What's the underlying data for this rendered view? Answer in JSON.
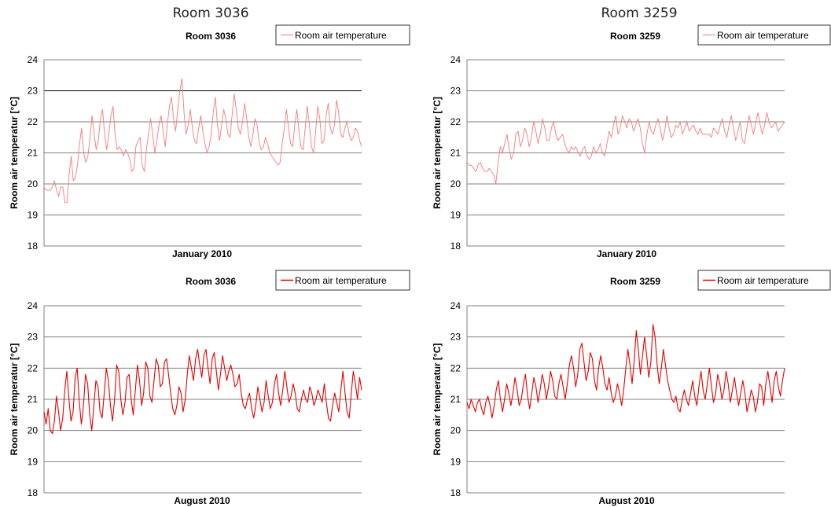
{
  "column_titles": [
    "Room 3036",
    "Room 3259"
  ],
  "colors": {
    "series_light": "#f47b7b",
    "series_dark": "#e60000",
    "grid": "#808080",
    "highlight_line": "#000000",
    "axis": "#808080"
  },
  "chart_data": [
    {
      "type": "line",
      "title": "Room 3036",
      "xlabel": "January 2010",
      "ylabel": "Room air temperatur [°C]",
      "ylim": [
        18,
        24
      ],
      "yticks": [
        "18",
        "19",
        "20",
        "21",
        "22",
        "23",
        "24"
      ],
      "grid": true,
      "highlight_y": 23,
      "legend_position": "top-right",
      "series": [
        {
          "name": "Room air temperature",
          "style": "light",
          "y": [
            19.9,
            19.8,
            19.8,
            19.8,
            19.9,
            20.1,
            19.8,
            19.6,
            19.9,
            19.9,
            19.4,
            19.4,
            20.3,
            20.9,
            20.1,
            20.2,
            20.6,
            21.3,
            21.8,
            21.0,
            20.7,
            20.9,
            21.5,
            22.2,
            21.6,
            21.1,
            21.4,
            22.1,
            22.4,
            21.6,
            21.1,
            21.6,
            22.2,
            22.5,
            21.6,
            21.1,
            21.2,
            21.1,
            20.9,
            21.1,
            21.0,
            20.8,
            20.4,
            20.5,
            21.2,
            21.4,
            21.5,
            20.6,
            20.4,
            21.1,
            21.6,
            22.1,
            21.6,
            21.0,
            21.4,
            21.9,
            22.2,
            21.7,
            21.2,
            21.9,
            22.5,
            22.8,
            22.1,
            21.7,
            22.4,
            23.0,
            23.4,
            22.3,
            21.6,
            21.9,
            22.4,
            21.8,
            21.4,
            21.3,
            21.8,
            22.2,
            21.7,
            21.3,
            21.0,
            21.2,
            21.6,
            22.3,
            22.8,
            21.9,
            21.4,
            21.9,
            22.4,
            22.1,
            21.6,
            21.5,
            22.2,
            22.9,
            22.4,
            21.8,
            21.6,
            22.0,
            22.6,
            22.1,
            21.5,
            21.2,
            21.6,
            22.1,
            21.9,
            21.3,
            21.1,
            21.2,
            21.5,
            21.3,
            21.0,
            20.9,
            20.8,
            20.7,
            20.6,
            20.7,
            21.3,
            21.8,
            22.4,
            21.8,
            21.3,
            21.2,
            21.9,
            22.4,
            21.7,
            21.2,
            21.1,
            21.8,
            22.5,
            21.9,
            21.2,
            21.0,
            21.7,
            22.5,
            22.1,
            21.3,
            21.4,
            22.2,
            22.6,
            21.8,
            21.6,
            21.9,
            22.7,
            22.3,
            21.6,
            21.5,
            21.8,
            22.0,
            21.6,
            21.4,
            21.5,
            21.8,
            21.7,
            21.4,
            21.2
          ]
        }
      ]
    },
    {
      "type": "line",
      "title": "Room 3259",
      "xlabel": "January 2010",
      "ylabel": "Room air temperatur [°C]",
      "ylim": [
        18,
        24
      ],
      "yticks": [
        "18",
        "19",
        "20",
        "21",
        "22",
        "23",
        "24"
      ],
      "grid": true,
      "legend_position": "top-right",
      "series": [
        {
          "name": "Room air temperature",
          "style": "light",
          "y": [
            20.7,
            20.6,
            20.6,
            20.5,
            20.4,
            20.6,
            20.7,
            20.5,
            20.4,
            20.4,
            20.5,
            20.4,
            20.3,
            20.0,
            20.7,
            21.2,
            21.0,
            21.3,
            21.6,
            21.1,
            20.8,
            21.0,
            21.6,
            21.7,
            21.2,
            21.4,
            21.8,
            21.6,
            21.2,
            21.5,
            22.0,
            21.7,
            21.3,
            21.6,
            22.1,
            21.8,
            21.4,
            21.4,
            21.8,
            22.0,
            21.6,
            21.4,
            21.5,
            21.6,
            21.3,
            21.1,
            21.0,
            21.2,
            21.1,
            21.2,
            21.0,
            20.9,
            21.1,
            21.2,
            20.9,
            20.8,
            20.9,
            21.2,
            21.0,
            21.1,
            21.3,
            21.0,
            20.9,
            21.3,
            21.7,
            21.5,
            21.9,
            22.2,
            21.6,
            21.8,
            22.2,
            22.0,
            21.8,
            22.1,
            22.0,
            21.7,
            21.9,
            22.1,
            21.8,
            21.3,
            21.0,
            21.6,
            22.0,
            21.7,
            21.6,
            21.9,
            22.1,
            21.8,
            21.4,
            21.7,
            22.2,
            21.8,
            21.5,
            21.6,
            21.9,
            21.8,
            22.0,
            21.6,
            21.8,
            22.0,
            21.7,
            21.8,
            21.9,
            21.7,
            21.6,
            21.8,
            21.6,
            21.6,
            21.6,
            21.6,
            21.5,
            21.8,
            21.7,
            21.6,
            21.9,
            22.1,
            21.7,
            21.5,
            21.9,
            22.2,
            21.8,
            21.4,
            21.7,
            22.0,
            21.4,
            21.3,
            21.8,
            22.2,
            21.9,
            21.6,
            22.0,
            22.3,
            21.9,
            21.6,
            21.9,
            22.3,
            22.0,
            21.8,
            21.9,
            22.0,
            21.7,
            21.8,
            21.9,
            22.0
          ]
        }
      ]
    },
    {
      "type": "line",
      "title": "Room 3036",
      "xlabel": "August 2010",
      "ylabel": "Room air temperatur [°C]",
      "ylim": [
        18,
        24
      ],
      "yticks": [
        "18",
        "19",
        "20",
        "21",
        "22",
        "23",
        "24"
      ],
      "grid": true,
      "legend_position": "top-right",
      "series": [
        {
          "name": "Room air temperature",
          "style": "dark",
          "y": [
            20.6,
            20.2,
            20.7,
            20.0,
            19.9,
            20.3,
            21.1,
            20.6,
            20.0,
            20.4,
            21.3,
            21.9,
            21.0,
            20.3,
            20.6,
            21.7,
            22.0,
            20.9,
            20.2,
            20.8,
            21.8,
            21.5,
            20.5,
            20.0,
            20.8,
            21.6,
            21.4,
            20.6,
            20.4,
            21.2,
            22.0,
            21.6,
            20.8,
            20.3,
            21.0,
            22.1,
            21.9,
            21.0,
            20.5,
            20.9,
            21.7,
            21.8,
            21.0,
            20.5,
            21.3,
            22.1,
            21.6,
            20.8,
            21.2,
            22.2,
            22.0,
            21.1,
            20.9,
            21.6,
            22.3,
            22.1,
            21.4,
            21.5,
            22.2,
            22.3,
            21.8,
            21.2,
            20.7,
            20.5,
            20.8,
            21.4,
            21.2,
            20.6,
            21.0,
            21.8,
            22.4,
            22.0,
            21.6,
            22.3,
            22.6,
            22.1,
            21.7,
            22.4,
            22.6,
            22.0,
            21.5,
            22.3,
            22.5,
            21.9,
            21.3,
            21.8,
            22.4,
            22.0,
            21.6,
            21.9,
            22.1,
            21.8,
            21.4,
            21.5,
            21.8,
            21.2,
            20.8,
            20.7,
            21.0,
            21.2,
            20.7,
            20.4,
            20.8,
            21.4,
            21.0,
            20.6,
            20.9,
            21.6,
            21.1,
            20.7,
            20.9,
            21.5,
            21.8,
            21.2,
            20.8,
            21.3,
            21.9,
            21.4,
            20.9,
            21.1,
            21.5,
            21.2,
            20.7,
            20.6,
            21.0,
            21.3,
            21.0,
            20.9,
            21.4,
            21.2,
            20.8,
            21.0,
            21.3,
            21.1,
            20.9,
            21.5,
            20.9,
            20.4,
            20.3,
            20.8,
            21.2,
            20.9,
            20.6,
            21.3,
            21.9,
            21.2,
            20.6,
            20.4,
            21.2,
            21.9,
            21.5,
            21.0,
            21.7,
            21.3
          ]
        }
      ]
    },
    {
      "type": "line",
      "title": "Room 3259",
      "xlabel": "August 2010",
      "ylabel": "Room air temperatur [°C]",
      "ylim": [
        18,
        24
      ],
      "yticks": [
        "18",
        "19",
        "20",
        "21",
        "22",
        "23",
        "24"
      ],
      "grid": true,
      "legend_position": "top-right",
      "series": [
        {
          "name": "Room air temperature",
          "style": "dark",
          "y": [
            20.9,
            20.7,
            21.0,
            20.8,
            20.6,
            20.9,
            21.0,
            20.7,
            20.5,
            20.9,
            21.1,
            20.8,
            20.4,
            20.8,
            21.3,
            21.6,
            21.0,
            20.6,
            21.0,
            21.5,
            21.2,
            20.8,
            21.2,
            21.7,
            21.3,
            20.8,
            21.0,
            21.5,
            21.8,
            21.1,
            20.7,
            21.2,
            21.7,
            21.4,
            20.9,
            21.3,
            21.8,
            21.5,
            21.0,
            21.4,
            21.9,
            21.6,
            21.1,
            21.0,
            21.5,
            21.8,
            21.4,
            21.0,
            21.5,
            22.1,
            22.4,
            22.0,
            21.4,
            21.8,
            22.6,
            22.8,
            22.2,
            21.6,
            21.9,
            22.5,
            22.3,
            21.6,
            21.3,
            22.0,
            22.4,
            22.0,
            21.5,
            21.3,
            21.7,
            21.2,
            20.9,
            21.1,
            21.5,
            21.2,
            20.8,
            21.3,
            22.0,
            22.6,
            22.1,
            21.5,
            22.2,
            23.2,
            22.6,
            21.8,
            22.4,
            23.0,
            22.4,
            21.7,
            22.2,
            23.4,
            23.0,
            22.1,
            21.5,
            22.0,
            22.6,
            22.1,
            21.6,
            21.3,
            21.0,
            20.9,
            21.1,
            20.7,
            20.6,
            21.0,
            21.3,
            21.0,
            20.8,
            21.2,
            21.6,
            21.1,
            20.8,
            21.4,
            21.9,
            21.3,
            21.0,
            21.5,
            22.0,
            21.4,
            20.9,
            21.2,
            21.8,
            21.5,
            21.0,
            21.3,
            21.9,
            21.5,
            20.9,
            21.3,
            21.7,
            21.2,
            20.8,
            21.2,
            21.6,
            21.2,
            20.6,
            20.9,
            21.3,
            21.1,
            20.6,
            20.9,
            21.5,
            21.4,
            20.8,
            21.5,
            21.9,
            21.4,
            20.9,
            21.6,
            21.9,
            21.4,
            21.1,
            21.6,
            22.0
          ]
        }
      ]
    }
  ]
}
